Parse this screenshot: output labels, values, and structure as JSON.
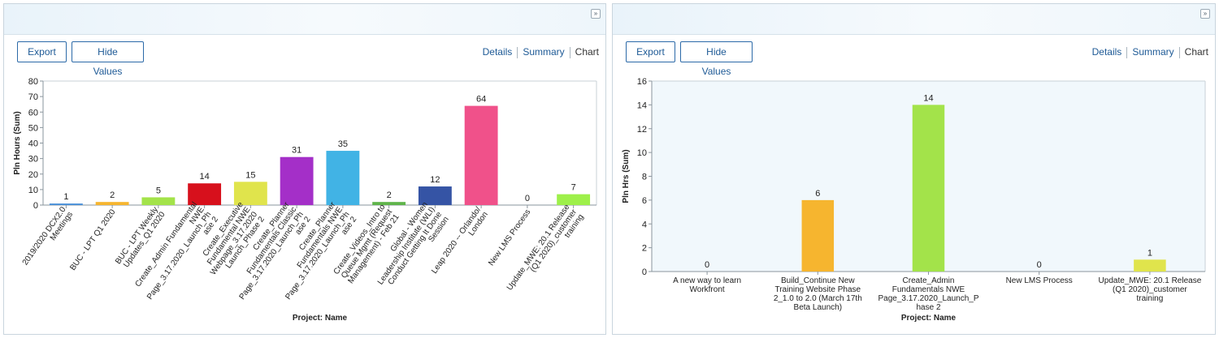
{
  "panels": [
    {
      "export_label": "Export",
      "hide_values_label": "Hide Values",
      "views": [
        "Details",
        "Summary",
        "Chart"
      ],
      "collapse_glyph": "»"
    },
    {
      "export_label": "Export",
      "hide_values_label": "Hide Values",
      "views": [
        "Details",
        "Summary",
        "Chart"
      ],
      "collapse_glyph": "»"
    }
  ],
  "chart_data": [
    {
      "type": "bar",
      "title": "",
      "xlabel": "Project: Name",
      "ylabel": "Pln Hours (Sum)",
      "ylim": [
        0,
        80
      ],
      "yticks": [
        0,
        10,
        20,
        30,
        40,
        50,
        60,
        70,
        80
      ],
      "grid": false,
      "background": "#ffffff",
      "categories": [
        "2019/2020 DCX2.0 Meetings",
        "BUC - LPT Q1 2020",
        "BUC - LPT Weekly Updates_Q1 2020",
        "Create_Admin Fundamental NWE Page_3.17.2020_Launch_Ph ase 2",
        "Create_Executive Fundamental NWE Webpage_3.17.2020 Launch_Phase 2",
        "Create_Planner Fundamentals Classic Page_3.17.2020_Launch_Ph ase 2",
        "Create_Planner Fundamentals NWE Page_3.17.2020_Launch_Ph ase 2",
        "Create_Videos_Intro to Queue Mgmt (Request Management) - Feb 21",
        "Global - Women Leadership Institute (WLI) Conduct Getting It Done Session",
        "Leap 2020 -- Orlando/ London",
        "New LMS Process",
        "Update_MWE: 20.1 Release (Q1 2020)_customer training"
      ],
      "tick_lines": [
        [
          "2019/2020 DCX2.0",
          "Meetings"
        ],
        [
          "BUC - LPT Q1 2020"
        ],
        [
          "BUC - LPT Weekly",
          "Updates_Q1 2020"
        ],
        [
          "Create_Admin Fundamental",
          "NWE",
          "Page_3.17.2020_Launch_Ph",
          "ase 2"
        ],
        [
          "Create_Executive",
          "Fundamental NWE",
          "Webpage_3.17.2020",
          "Launch_Phase 2"
        ],
        [
          "Create_Planner",
          "Fundamentals Classic",
          "Page_3.17.2020_Launch_Ph",
          "ase 2"
        ],
        [
          "Create_Planner",
          "Fundamentals NWE",
          "Page_3.17.2020_Launch_Ph",
          "ase 2"
        ],
        [
          "Create_Videos_Intro to",
          "Queue Mgmt (Request",
          "Management) - Feb 21"
        ],
        [
          "Global - Women",
          "Leadership Institute (WLI)",
          "Conduct Getting It Done",
          "Session"
        ],
        [
          "Leap 2020 -- Orlando/",
          "London"
        ],
        [
          "New LMS Process"
        ],
        [
          "Update_MWE: 20.1 Release",
          "(Q1 2020)_customer",
          "training"
        ]
      ],
      "values": [
        1,
        2,
        5,
        14,
        15,
        31,
        35,
        2,
        12,
        64,
        0,
        7
      ],
      "colors": [
        "#4a90d9",
        "#f6b52f",
        "#a3e34a",
        "#d7101c",
        "#e0e44c",
        "#a42fc8",
        "#41b3e5",
        "#5fb44a",
        "#3554a5",
        "#f0518a",
        "#888888",
        "#9ef04a"
      ]
    },
    {
      "type": "bar",
      "title": "",
      "xlabel": "Project: Name",
      "ylabel": "Pln Hrs (Sum)",
      "ylim": [
        0,
        16
      ],
      "yticks": [
        0,
        2,
        4,
        6,
        8,
        10,
        12,
        14,
        16
      ],
      "grid": false,
      "background": "#f1f8fc",
      "categories": [
        "A new way to learn Workfront",
        "Build_Continue New Training Website Phase 2_1.0 to 2.0 (March 17th Beta Launch)",
        "Create_Admin Fundamentals NWE Page_3.17.2020_Launch_P hase 2",
        "New LMS Process",
        "Update_MWE: 20.1 Release (Q1 2020)_customer training"
      ],
      "tick_lines": [
        [
          "A new way to learn",
          "Workfront"
        ],
        [
          "Build_Continue New",
          "Training Website Phase",
          "2_1.0 to 2.0 (March 17th",
          "Beta Launch)"
        ],
        [
          "Create_Admin",
          "Fundamentals NWE",
          "Page_3.17.2020_Launch_P",
          "hase 2"
        ],
        [
          "New LMS Process"
        ],
        [
          "Update_MWE: 20.1 Release",
          "(Q1 2020)_customer",
          "training"
        ]
      ],
      "values": [
        0,
        6,
        14,
        0,
        1
      ],
      "colors": [
        "#888888",
        "#f6b52f",
        "#a3e34a",
        "#888888",
        "#e0e44c"
      ]
    }
  ]
}
